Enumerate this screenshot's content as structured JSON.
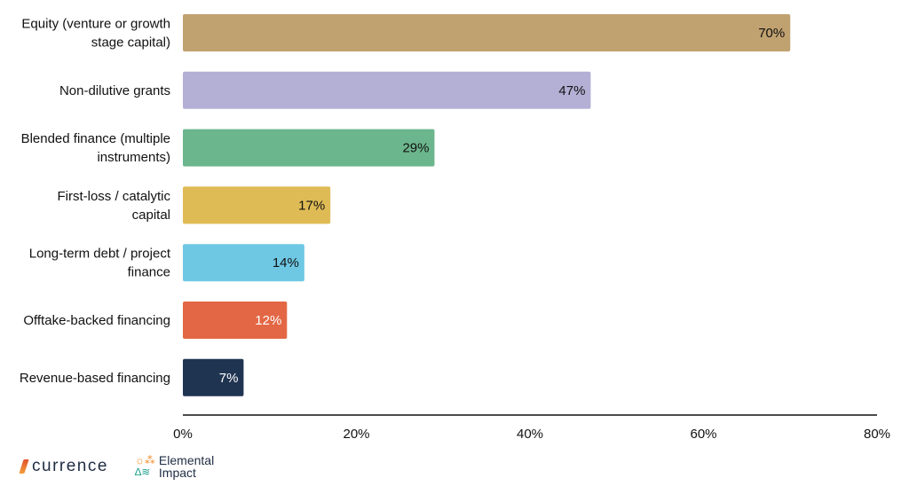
{
  "chart_data": {
    "type": "bar",
    "orientation": "horizontal",
    "categories": [
      [
        "Equity (venture or growth",
        "stage capital)"
      ],
      [
        "Non-dilutive grants"
      ],
      [
        "Blended finance (multiple",
        "instruments)"
      ],
      [
        "First-loss / catalytic",
        "capital"
      ],
      [
        "Long-term debt / project",
        "finance"
      ],
      [
        "Offtake-backed financing"
      ],
      [
        "Revenue-based financing"
      ]
    ],
    "values": [
      70,
      47,
      29,
      17,
      14,
      12,
      7
    ],
    "data_labels": [
      "70%",
      "47%",
      "29%",
      "17%",
      "14%",
      "12%",
      "7%"
    ],
    "colors": [
      "#c0a170",
      "#b3afd5",
      "#6cb68d",
      "#debb55",
      "#6ec8e3",
      "#e36744",
      "#1f3451"
    ],
    "label_colors": [
      "#111111",
      "#111111",
      "#111111",
      "#111111",
      "#111111",
      "#ffffff",
      "#ffffff"
    ],
    "xlim": [
      0,
      80
    ],
    "xticks": [
      0,
      20,
      40,
      60,
      80
    ],
    "xtick_labels": [
      "0%",
      "20%",
      "40%",
      "60%",
      "80%"
    ],
    "grid": false,
    "legend": "none",
    "title": "",
    "xlabel": "",
    "ylabel": ""
  },
  "logos": {
    "currence": "currence",
    "elemental_line1": "Elemental",
    "elemental_line2": "Impact",
    "elemental_glyph1": "☼⁂",
    "elemental_glyph2": "∆≋"
  }
}
